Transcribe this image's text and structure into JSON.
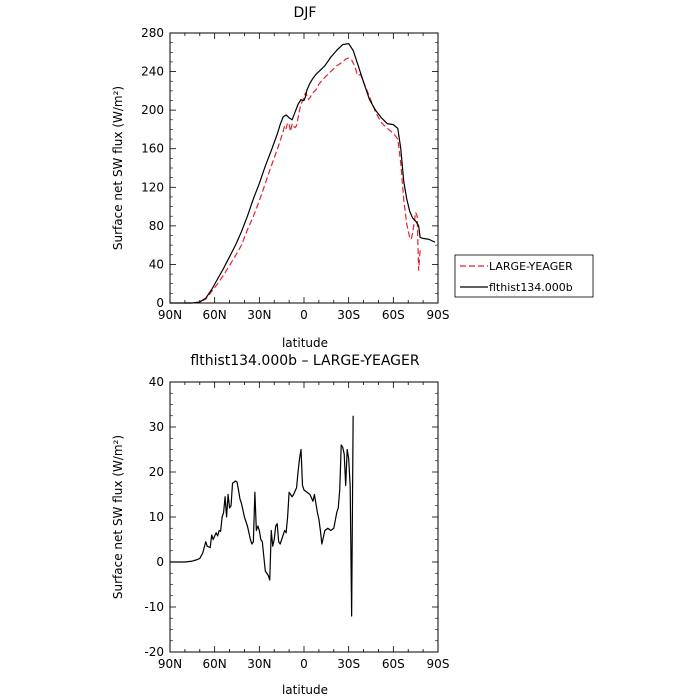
{
  "chart_data": [
    {
      "type": "line",
      "title": "DJF",
      "xlabel": "latitude",
      "ylabel": "Surface net SW flux (W/m²)",
      "xlim": [
        90,
        -90
      ],
      "ylim": [
        0,
        280
      ],
      "x_ticks": [
        {
          "value": 90,
          "label": "90N"
        },
        {
          "value": 60,
          "label": "60N"
        },
        {
          "value": 30,
          "label": "30N"
        },
        {
          "value": 0,
          "label": "0"
        },
        {
          "value": -30,
          "label": "30S"
        },
        {
          "value": -60,
          "label": "60S"
        },
        {
          "value": -90,
          "label": "90S"
        }
      ],
      "y_ticks": [
        0,
        40,
        80,
        120,
        160,
        200,
        240,
        280
      ],
      "legend": {
        "placement": "right"
      },
      "series": [
        {
          "name": "LARGE-YEAGER",
          "color": "#e8202a",
          "dash": "dashed",
          "points": [
            [
              80,
              0
            ],
            [
              75,
              0
            ],
            [
              70,
              1
            ],
            [
              66,
              4
            ],
            [
              62,
              12
            ],
            [
              58,
              20
            ],
            [
              54,
              29
            ],
            [
              50,
              39
            ],
            [
              46,
              49
            ],
            [
              42,
              60
            ],
            [
              38,
              76
            ],
            [
              34,
              90
            ],
            [
              30,
              106
            ],
            [
              26,
              124
            ],
            [
              22,
              142
            ],
            [
              18,
              159
            ],
            [
              16,
              168
            ],
            [
              14,
              178
            ],
            [
              13,
              184
            ],
            [
              12,
              181
            ],
            [
              11,
              187
            ],
            [
              10,
              185
            ],
            [
              9,
              178
            ],
            [
              8,
              186
            ],
            [
              7,
              183
            ],
            [
              6,
              182
            ],
            [
              5,
              184
            ],
            [
              4,
              192
            ],
            [
              3,
              200
            ],
            [
              2,
              206
            ],
            [
              1,
              210
            ],
            [
              0,
              213
            ],
            [
              -1,
              218
            ],
            [
              -2,
              215
            ],
            [
              -3,
              211
            ],
            [
              -4,
              213
            ],
            [
              -6,
              218
            ],
            [
              -8,
              221
            ],
            [
              -10,
              227
            ],
            [
              -14,
              234
            ],
            [
              -18,
              240
            ],
            [
              -22,
              246
            ],
            [
              -26,
              250
            ],
            [
              -28,
              253
            ],
            [
              -30,
              254
            ],
            [
              -32,
              252
            ],
            [
              -34,
              246
            ],
            [
              -36,
              236
            ],
            [
              -38,
              237
            ],
            [
              -40,
              229
            ],
            [
              -44,
              214
            ],
            [
              -48,
              198
            ],
            [
              -52,
              187
            ],
            [
              -56,
              181
            ],
            [
              -60,
              176
            ],
            [
              -63,
              170
            ],
            [
              -65,
              145
            ],
            [
              -67,
              107
            ],
            [
              -69,
              82
            ],
            [
              -71,
              68
            ],
            [
              -72,
              66
            ],
            [
              -73,
              73
            ],
            [
              -75,
              94
            ],
            [
              -76,
              90
            ],
            [
              -77,
              34
            ],
            [
              -78,
              55
            ]
          ]
        },
        {
          "name": "flthist134.000b",
          "color": "#000000",
          "dash": "solid",
          "points": [
            [
              90,
              0
            ],
            [
              85,
              0
            ],
            [
              80,
              0
            ],
            [
              75,
              0
            ],
            [
              70,
              1
            ],
            [
              66,
              5
            ],
            [
              62,
              14
            ],
            [
              58,
              25
            ],
            [
              54,
              36
            ],
            [
              50,
              48
            ],
            [
              46,
              60
            ],
            [
              42,
              74
            ],
            [
              38,
              90
            ],
            [
              34,
              108
            ],
            [
              30,
              124
            ],
            [
              26,
              142
            ],
            [
              22,
              158
            ],
            [
              18,
              175
            ],
            [
              16,
              185
            ],
            [
              14,
              193
            ],
            [
              12,
              195
            ],
            [
              10,
              192
            ],
            [
              8,
              190
            ],
            [
              6,
              198
            ],
            [
              4,
              206
            ],
            [
              2,
              211
            ],
            [
              1,
              210
            ],
            [
              0,
              210
            ],
            [
              -1,
              214
            ],
            [
              -2,
              221
            ],
            [
              -4,
              228
            ],
            [
              -6,
              233
            ],
            [
              -8,
              237
            ],
            [
              -10,
              240
            ],
            [
              -14,
              246
            ],
            [
              -18,
              255
            ],
            [
              -22,
              262
            ],
            [
              -26,
              268
            ],
            [
              -30,
              269
            ],
            [
              -33,
              262
            ],
            [
              -36,
              248
            ],
            [
              -40,
              229
            ],
            [
              -44,
              211
            ],
            [
              -48,
              200
            ],
            [
              -52,
              192
            ],
            [
              -56,
              186
            ],
            [
              -60,
              185
            ],
            [
              -63,
              181
            ],
            [
              -65,
              160
            ],
            [
              -67,
              126
            ],
            [
              -69,
              108
            ],
            [
              -71,
              95
            ],
            [
              -73,
              88
            ],
            [
              -75,
              85
            ],
            [
              -77,
              80
            ],
            [
              -78,
              68
            ],
            [
              -80,
              67
            ],
            [
              -84,
              66
            ],
            [
              -88,
              63
            ]
          ]
        }
      ]
    },
    {
      "type": "line",
      "title": "flthist134.000b – LARGE-YEAGER",
      "xlabel": "latitude",
      "ylabel": "Surface net SW flux (W/m²)",
      "xlim": [
        90,
        -90
      ],
      "ylim": [
        -20,
        40
      ],
      "x_ticks": [
        {
          "value": 90,
          "label": "90N"
        },
        {
          "value": 60,
          "label": "60N"
        },
        {
          "value": 30,
          "label": "30N"
        },
        {
          "value": 0,
          "label": "0"
        },
        {
          "value": -30,
          "label": "30S"
        },
        {
          "value": -60,
          "label": "60S"
        },
        {
          "value": -90,
          "label": "90S"
        }
      ],
      "y_ticks": [
        -20,
        -10,
        0,
        10,
        20,
        30,
        40
      ],
      "series": [
        {
          "color": "#000000",
          "dash": "solid",
          "points": [
            [
              90,
              0
            ],
            [
              80,
              0
            ],
            [
              75,
              0.2
            ],
            [
              72,
              0.5
            ],
            [
              70,
              0.8
            ],
            [
              68,
              2
            ],
            [
              66,
              4.5
            ],
            [
              65,
              3.5
            ],
            [
              63,
              3.2
            ],
            [
              62,
              6
            ],
            [
              61,
              5
            ],
            [
              59,
              6.5
            ],
            [
              58,
              5.8
            ],
            [
              57,
              7
            ],
            [
              56,
              6.8
            ],
            [
              55,
              10
            ],
            [
              54,
              11
            ],
            [
              53,
              14.5
            ],
            [
              52,
              10
            ],
            [
              51,
              15
            ],
            [
              50,
              12
            ],
            [
              49,
              12.5
            ],
            [
              48,
              17.5
            ],
            [
              46,
              18
            ],
            [
              45,
              17.8
            ],
            [
              44,
              16
            ],
            [
              43,
              14
            ],
            [
              42,
              13
            ],
            [
              40,
              10
            ],
            [
              38,
              8
            ],
            [
              36,
              5
            ],
            [
              35,
              4
            ],
            [
              34,
              4.5
            ],
            [
              33,
              15.5
            ],
            [
              32,
              7
            ],
            [
              31,
              8
            ],
            [
              30,
              7
            ],
            [
              29,
              5
            ],
            [
              28,
              4.5
            ],
            [
              26,
              -2
            ],
            [
              24,
              -3
            ],
            [
              23,
              -4
            ],
            [
              22,
              7
            ],
            [
              21,
              3.5
            ],
            [
              20,
              5
            ],
            [
              19,
              8
            ],
            [
              18,
              8.5
            ],
            [
              17,
              4.5
            ],
            [
              16,
              4
            ],
            [
              14,
              6
            ],
            [
              13,
              7
            ],
            [
              12,
              6.5
            ],
            [
              11,
              10
            ],
            [
              10,
              15.5
            ],
            [
              9,
              15
            ],
            [
              8,
              14.5
            ],
            [
              7,
              15
            ],
            [
              5,
              16.5
            ],
            [
              4,
              20
            ],
            [
              3,
              23
            ],
            [
              2,
              25
            ],
            [
              1,
              17
            ],
            [
              0,
              16
            ],
            [
              -2,
              15.5
            ],
            [
              -4,
              15
            ],
            [
              -6,
              13.5
            ],
            [
              -7,
              15
            ],
            [
              -8,
              13
            ],
            [
              -9,
              11
            ],
            [
              -10,
              9.5
            ],
            [
              -11,
              7
            ],
            [
              -12,
              4
            ],
            [
              -13,
              5.5
            ],
            [
              -14,
              7
            ],
            [
              -16,
              7.5
            ],
            [
              -18,
              7
            ],
            [
              -20,
              7.5
            ],
            [
              -22,
              11
            ],
            [
              -23,
              12
            ],
            [
              -24,
              16
            ],
            [
              -25,
              26
            ],
            [
              -26,
              25.5
            ],
            [
              -27,
              24
            ],
            [
              -28,
              17
            ],
            [
              -29,
              25
            ],
            [
              -30,
              23
            ],
            [
              -31,
              17
            ],
            [
              -32,
              -12
            ],
            [
              -33,
              32.5
            ]
          ]
        }
      ]
    }
  ]
}
